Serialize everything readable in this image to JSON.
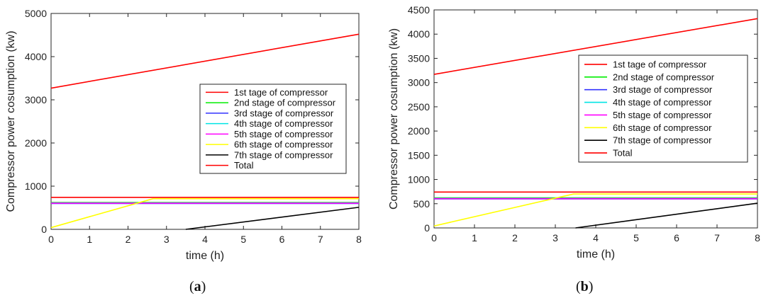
{
  "chart_data": [
    {
      "type": "line",
      "caption": "a",
      "xlabel": "time (h)",
      "ylabel": "Compressor power cosumption (kw)",
      "xlim": [
        0,
        8
      ],
      "ylim": [
        0,
        5000
      ],
      "xticks": [
        0,
        1,
        2,
        3,
        4,
        5,
        6,
        7,
        8
      ],
      "yticks": [
        0,
        1000,
        2000,
        3000,
        4000,
        5000
      ],
      "grid": false,
      "legend_position": "center-right",
      "series": [
        {
          "name": "1st tage of compressor",
          "color": "#ff0000",
          "x": [
            0,
            8
          ],
          "y": [
            3270,
            4520
          ]
        },
        {
          "name": "2nd stage of compressor",
          "color": "#00ee00",
          "x": [
            0,
            8
          ],
          "y": [
            620,
            620
          ]
        },
        {
          "name": "3rd stage of compressor",
          "color": "#3333ff",
          "x": [
            0,
            8
          ],
          "y": [
            600,
            600
          ]
        },
        {
          "name": "4th stage of compressor",
          "color": "#00e5e5",
          "x": [
            0,
            8
          ],
          "y": [
            610,
            610
          ]
        },
        {
          "name": "5th stage of compressor",
          "color": "#ff00ff",
          "x": [
            0,
            8
          ],
          "y": [
            605,
            605
          ]
        },
        {
          "name": "6th stage of compressor",
          "color": "#ffff00",
          "x": [
            0,
            2.65,
            8
          ],
          "y": [
            40,
            710,
            710
          ]
        },
        {
          "name": "7th stage of compressor",
          "color": "#000000",
          "x": [
            3.5,
            8
          ],
          "y": [
            0,
            510
          ]
        },
        {
          "name": "Total",
          "color": "#ff0000",
          "x": [
            0,
            8
          ],
          "y": [
            740,
            740
          ]
        }
      ]
    },
    {
      "type": "line",
      "caption": "b",
      "xlabel": "time (h)",
      "ylabel": "Compressor power cosumption (kw)",
      "xlim": [
        0,
        8
      ],
      "ylim": [
        0,
        4500
      ],
      "xticks": [
        0,
        1,
        2,
        3,
        4,
        5,
        6,
        7,
        8
      ],
      "yticks": [
        0,
        500,
        1000,
        1500,
        2000,
        2500,
        3000,
        3500,
        4000,
        4500
      ],
      "grid": false,
      "legend_position": "center-right",
      "series": [
        {
          "name": "1st tage of compressor",
          "color": "#ff0000",
          "x": [
            0,
            8
          ],
          "y": [
            3170,
            4320
          ]
        },
        {
          "name": "2nd stage of compressor",
          "color": "#00ee00",
          "x": [
            0,
            8
          ],
          "y": [
            620,
            620
          ]
        },
        {
          "name": "3rd stage of compressor",
          "color": "#3333ff",
          "x": [
            0,
            8
          ],
          "y": [
            600,
            600
          ]
        },
        {
          "name": "4th stage of compressor",
          "color": "#00e5e5",
          "x": [
            0,
            8
          ],
          "y": [
            610,
            610
          ]
        },
        {
          "name": "5th stage of compressor",
          "color": "#ff00ff",
          "x": [
            0,
            8
          ],
          "y": [
            605,
            605
          ]
        },
        {
          "name": "6th stage of compressor",
          "color": "#ffff00",
          "x": [
            0,
            3.45,
            8
          ],
          "y": [
            40,
            700,
            700
          ]
        },
        {
          "name": "7th stage of compressor",
          "color": "#000000",
          "x": [
            3.5,
            8
          ],
          "y": [
            0,
            510
          ]
        },
        {
          "name": "Total",
          "color": "#ff0000",
          "x": [
            0,
            8
          ],
          "y": [
            740,
            740
          ]
        }
      ]
    }
  ]
}
